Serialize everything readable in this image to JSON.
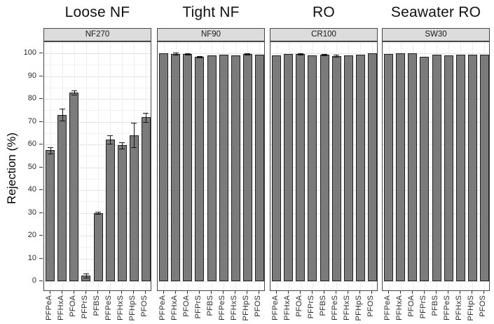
{
  "chart_data": {
    "type": "bar",
    "title": "",
    "xlabel": "",
    "ylabel": "Rejection (%)",
    "ylim": [
      0,
      105
    ],
    "y_ticks": [
      0,
      10,
      20,
      30,
      40,
      50,
      60,
      70,
      80,
      90,
      100
    ],
    "grid": true,
    "legend": false,
    "error_bars": true,
    "categories": [
      "PFPeA",
      "PFHxA",
      "PFOA",
      "PFPrS",
      "PFBS",
      "PFPeS",
      "PFHxS",
      "PFHpS",
      "PFOS"
    ],
    "facets": [
      {
        "title": "Loose NF",
        "membrane": "NF270",
        "values": [
          57.4,
          73.0,
          82.8,
          2.4,
          30.0,
          62.1,
          59.6,
          64.1,
          71.9
        ],
        "errors": [
          1.4,
          2.6,
          0.8,
          1.0,
          0.5,
          1.9,
          1.3,
          5.3,
          2.0
        ]
      },
      {
        "title": "Tight NF",
        "membrane": "NF90",
        "values": [
          100,
          99.8,
          99.8,
          98.6,
          99.1,
          99.3,
          99.1,
          99.7,
          99.4
        ],
        "errors": [
          0,
          0.4,
          0.3,
          0.3,
          0,
          0,
          0,
          0.3,
          0
        ]
      },
      {
        "title": "RO",
        "membrane": "CR100",
        "values": [
          99.2,
          99.7,
          99.7,
          99.1,
          99.4,
          98.9,
          99.2,
          99.4,
          100
        ],
        "errors": [
          0,
          0,
          0.3,
          0,
          0.3,
          0.4,
          0,
          0,
          0
        ]
      },
      {
        "title": "Seawater RO",
        "membrane": "SW30",
        "values": [
          99.8,
          100,
          100,
          98.5,
          99.5,
          99.2,
          99.3,
          99.3,
          99.5
        ],
        "errors": [
          0,
          0,
          0,
          0,
          0,
          0,
          0,
          0,
          0
        ]
      }
    ],
    "colors": {
      "bar_fill": "#7b7b7b",
      "bar_border": "#1f1f1f",
      "strip_bg": "#dcdcdc",
      "panel_border": "#474747",
      "grid_major": "#e2e2e2",
      "grid_minor": "#f1f1f1",
      "error_bar": "#141414"
    }
  }
}
